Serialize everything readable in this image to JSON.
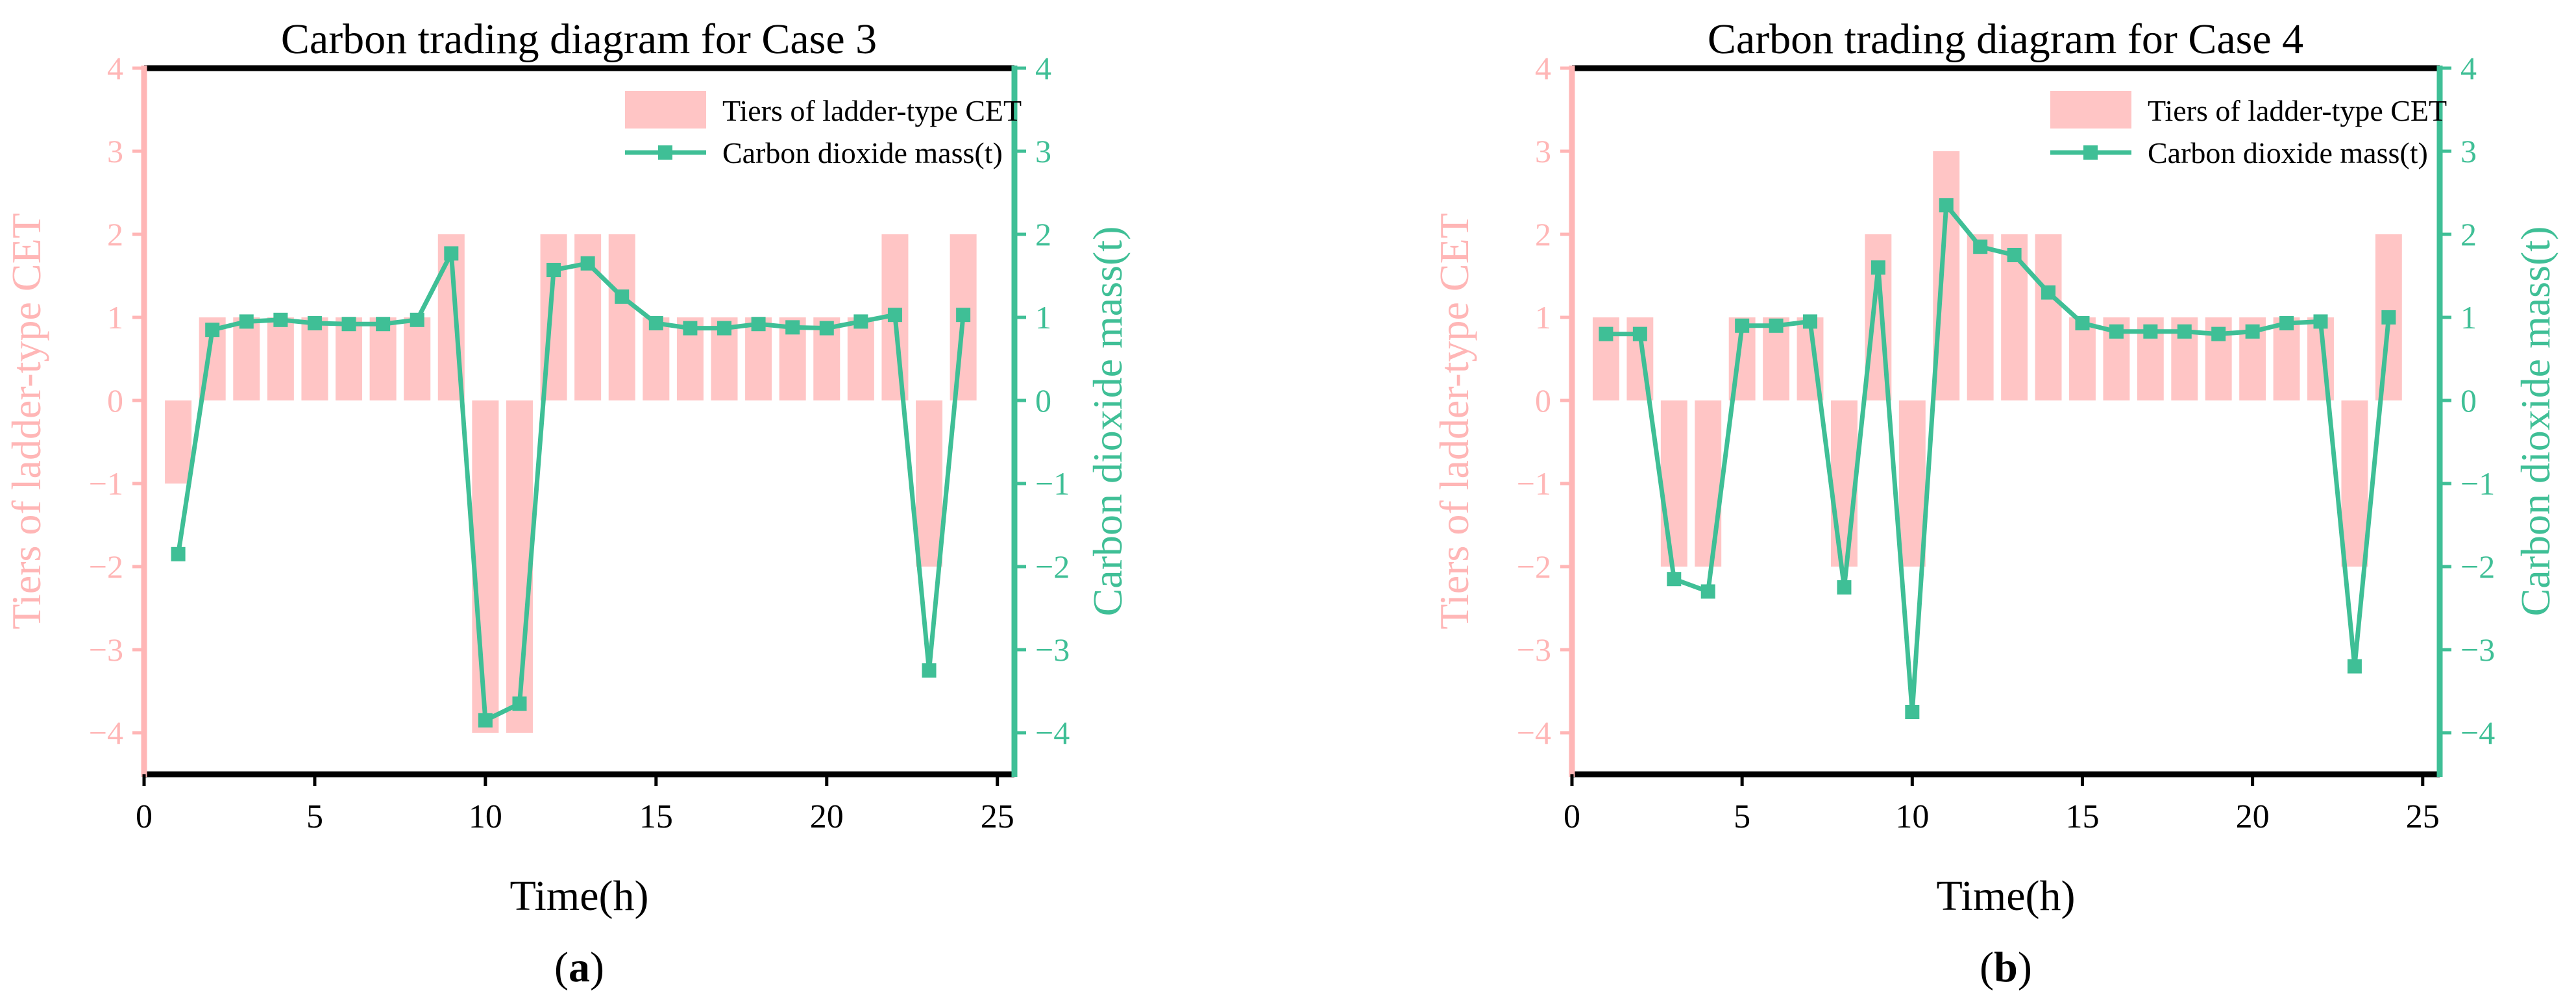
{
  "colors": {
    "bar": "#ffc5c5",
    "bar_axis": "#ffb6b6",
    "line": "#3fbf96",
    "frame": "#000000"
  },
  "chart_data": [
    {
      "type": "bar+line",
      "panel_label": "a",
      "title": "Carbon trading diagram for Case 3",
      "xlabel": "Time(h)",
      "ylabel_left": "Tiers of ladder-type CET",
      "ylabel_right": "Carbon dioxide mass(t)",
      "xlim": [
        0,
        25.5
      ],
      "ylim": [
        -4.5,
        4
      ],
      "xticks": [
        0,
        5,
        10,
        15,
        20,
        25
      ],
      "xtick_labels": [
        "0",
        "5",
        "10",
        "15",
        "20",
        "25"
      ],
      "yticks": [
        -4,
        -3,
        -2,
        -1,
        0,
        1,
        2,
        3,
        4
      ],
      "ytick_labels": [
        "−4",
        "−3",
        "−2",
        "−1",
        "0",
        "1",
        "2",
        "3",
        "4"
      ],
      "legend": [
        "Tiers of ladder-type CET",
        "Carbon dioxide mass(t)"
      ],
      "legend_position": "top-right",
      "x": [
        1,
        2,
        3,
        4,
        5,
        6,
        7,
        8,
        9,
        10,
        11,
        12,
        13,
        14,
        15,
        16,
        17,
        18,
        19,
        20,
        21,
        22,
        23,
        24
      ],
      "series": [
        {
          "name": "Tiers of ladder-type CET",
          "kind": "bar",
          "axis": "left",
          "values": [
            -1,
            1,
            1,
            1,
            1,
            1,
            1,
            1,
            2,
            -4,
            -4,
            2,
            2,
            2,
            1,
            1,
            1,
            1,
            1,
            1,
            1,
            2,
            -2,
            2
          ]
        },
        {
          "name": "Carbon dioxide mass(t)",
          "kind": "line",
          "axis": "right",
          "values": [
            -1.85,
            0.85,
            0.95,
            0.97,
            0.93,
            0.92,
            0.92,
            0.97,
            1.77,
            -3.85,
            -3.65,
            1.57,
            1.65,
            1.25,
            0.93,
            0.87,
            0.87,
            0.92,
            0.88,
            0.87,
            0.95,
            1.03,
            -3.25,
            1.03
          ]
        }
      ]
    },
    {
      "type": "bar+line",
      "panel_label": "b",
      "title": "Carbon trading diagram for Case 4",
      "xlabel": "Time(h)",
      "ylabel_left": "Tiers of ladder-type CET",
      "ylabel_right": "Carbon dioxide mass(t)",
      "xlim": [
        0,
        25.5
      ],
      "ylim": [
        -4.5,
        4
      ],
      "xticks": [
        0,
        5,
        10,
        15,
        20,
        25
      ],
      "xtick_labels": [
        "0",
        "5",
        "10",
        "15",
        "20",
        "25"
      ],
      "yticks": [
        -4,
        -3,
        -2,
        -1,
        0,
        1,
        2,
        3,
        4
      ],
      "ytick_labels": [
        "−4",
        "−3",
        "−2",
        "−1",
        "0",
        "1",
        "2",
        "3",
        "4"
      ],
      "legend": [
        "Tiers of ladder-type CET",
        "Carbon dioxide mass(t)"
      ],
      "legend_position": "top-right",
      "x": [
        1,
        2,
        3,
        4,
        5,
        6,
        7,
        8,
        9,
        10,
        11,
        12,
        13,
        14,
        15,
        16,
        17,
        18,
        19,
        20,
        21,
        22,
        23,
        24
      ],
      "series": [
        {
          "name": "Tiers of ladder-type CET",
          "kind": "bar",
          "axis": "left",
          "values": [
            1,
            1,
            -2,
            -2,
            1,
            1,
            1,
            -2,
            2,
            -2,
            3,
            2,
            2,
            2,
            1,
            1,
            1,
            1,
            1,
            1,
            1,
            1,
            -2,
            2
          ]
        },
        {
          "name": "Carbon dioxide mass(t)",
          "kind": "line",
          "axis": "right",
          "values": [
            0.8,
            0.8,
            -2.15,
            -2.3,
            0.9,
            0.9,
            0.95,
            -2.25,
            1.6,
            -3.75,
            2.35,
            1.85,
            1.75,
            1.3,
            0.93,
            0.83,
            0.83,
            0.83,
            0.8,
            0.83,
            0.93,
            0.95,
            -3.2,
            1.0
          ]
        }
      ]
    }
  ]
}
